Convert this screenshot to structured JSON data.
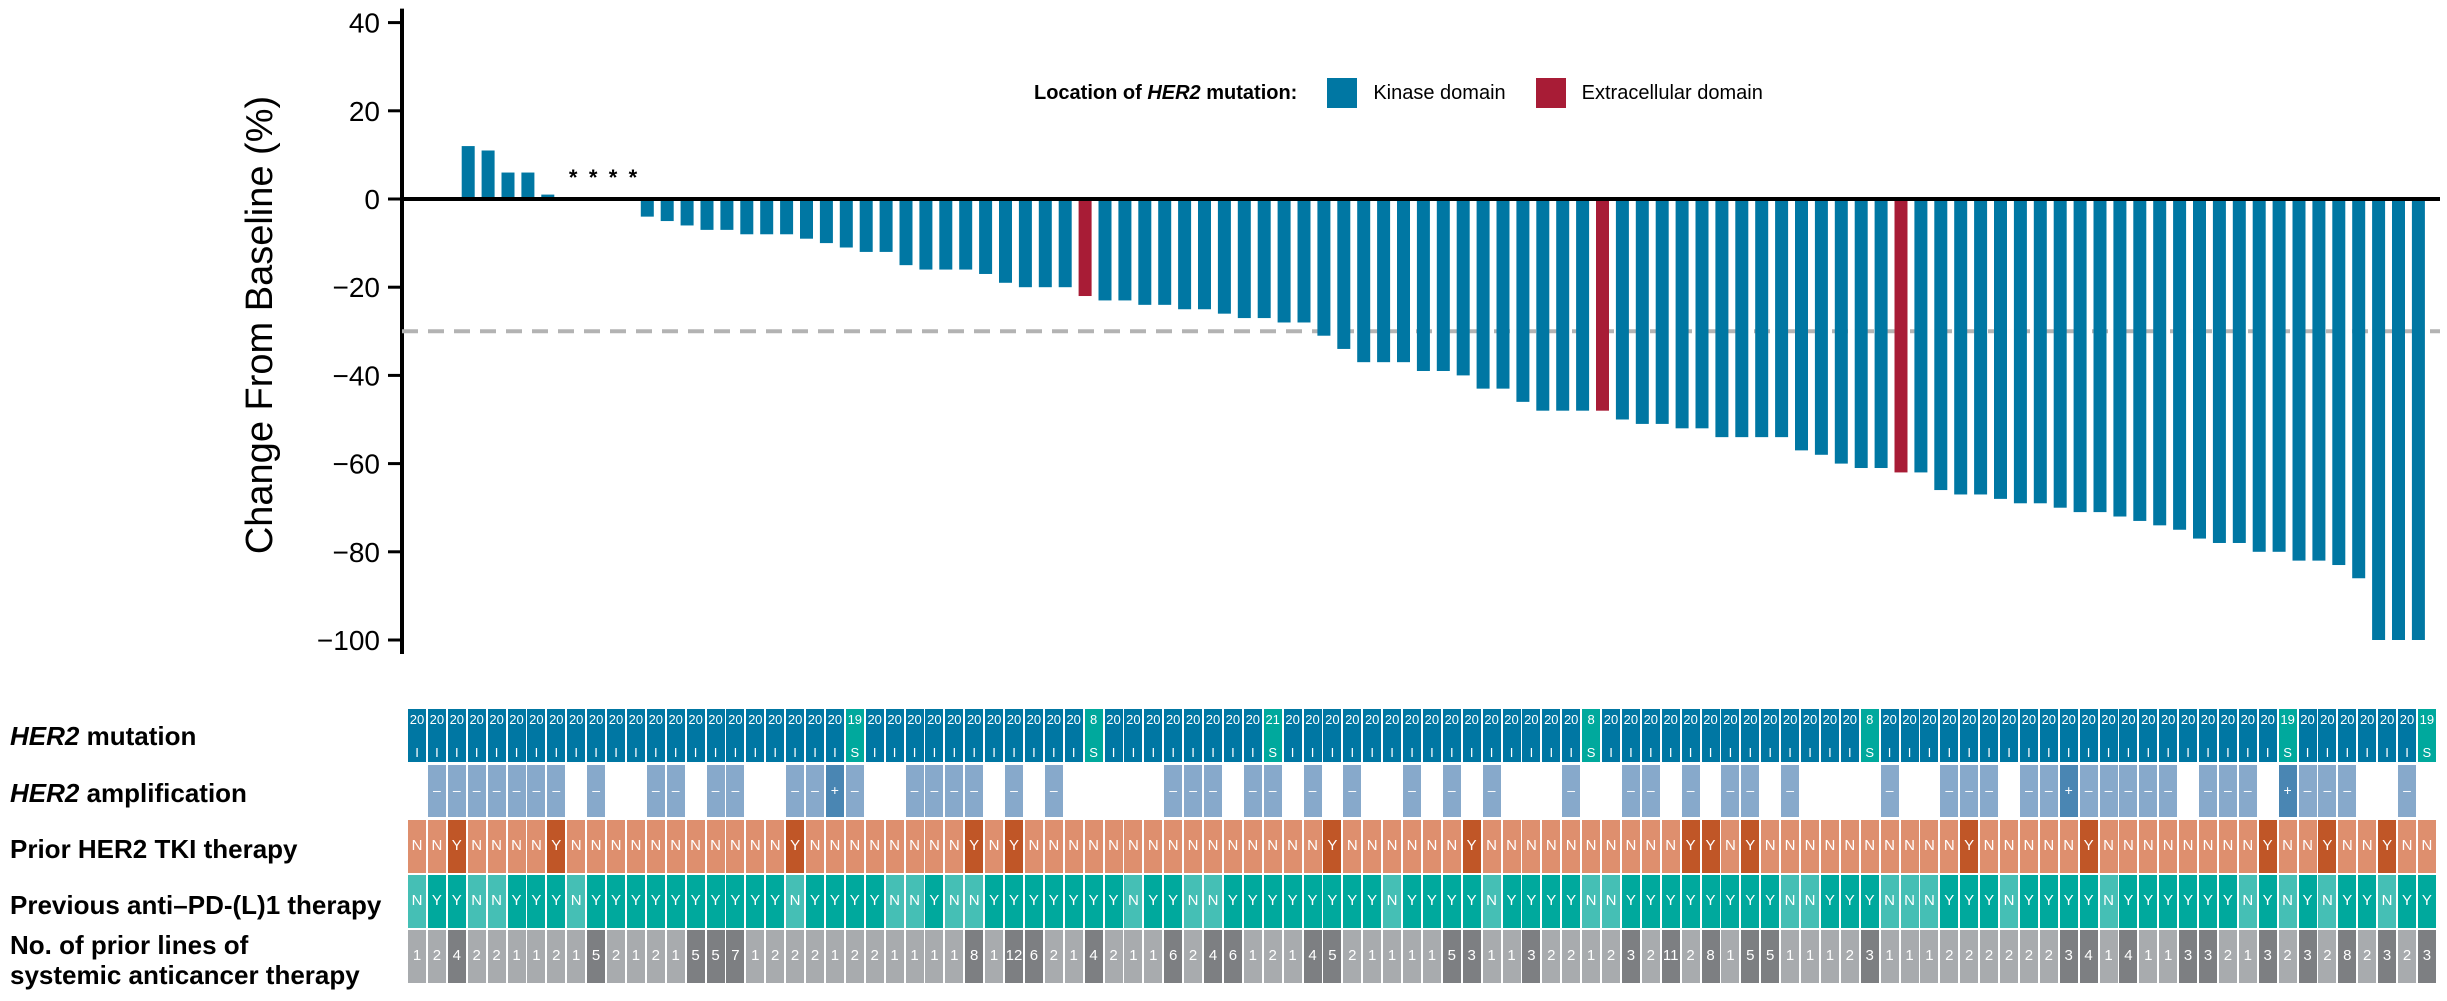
{
  "chart_data": {
    "type": "bar",
    "title": "",
    "ylabel": "Change From Baseline (%)",
    "xlabel": "",
    "ylim": [
      -100,
      40
    ],
    "yticks": [
      40,
      20,
      0,
      -20,
      -40,
      -60,
      -80,
      -100
    ],
    "ytick_labels": [
      "40",
      "20",
      "0",
      "−20",
      "−40",
      "−60",
      "−80",
      "−100"
    ],
    "reference_line": {
      "value": -30,
      "style": "dashed",
      "color": "#b3b3b3"
    },
    "legend": {
      "title_prefix": "Location of ",
      "title_italic": "HER2",
      "title_suffix": " mutation:",
      "placement": "top-center",
      "entries": [
        {
          "label": "Kinase domain",
          "color": "#0077a3"
        },
        {
          "label": "Extracellular domain",
          "color": "#a81c36"
        }
      ]
    },
    "asterisk_marker": "*",
    "n_columns": 102,
    "first_bar_column": 3,
    "values": [
      12,
      11,
      6,
      6,
      1,
      "*",
      "*",
      "*",
      "*",
      -4,
      -5,
      -6,
      -7,
      -7,
      -8,
      -8,
      -8,
      -9,
      -10,
      -11,
      -12,
      -12,
      -15,
      -16,
      -16,
      -16,
      -17,
      -19,
      -20,
      -20,
      -20,
      -22,
      -23,
      -23,
      -24,
      -24,
      -25,
      -25,
      -26,
      -27,
      -27,
      -28,
      -28,
      -31,
      -34,
      -37,
      -37,
      -37,
      -39,
      -39,
      -40,
      -43,
      -43,
      -46,
      -48,
      -48,
      -48,
      -48,
      -50,
      -51,
      -51,
      -52,
      -52,
      -54,
      -54,
      -54,
      -54,
      -57,
      -58,
      -60,
      -61,
      -61,
      -62,
      -62,
      -66,
      -67,
      -67,
      -68,
      -69,
      -69,
      -70,
      -71,
      -71,
      -72,
      -73,
      -74,
      -75,
      -77,
      -78,
      -78,
      -80,
      -80,
      -82,
      -82,
      -83,
      -86,
      -100,
      -100,
      -100
    ],
    "domain": [
      "K",
      "K",
      "K",
      "K",
      "K",
      "K",
      "K",
      "K",
      "K",
      "K",
      "K",
      "K",
      "K",
      "K",
      "K",
      "K",
      "K",
      "K",
      "K",
      "K",
      "K",
      "K",
      "K",
      "K",
      "K",
      "K",
      "K",
      "K",
      "K",
      "K",
      "K",
      "E",
      "K",
      "K",
      "K",
      "K",
      "K",
      "K",
      "K",
      "K",
      "K",
      "K",
      "K",
      "K",
      "K",
      "K",
      "K",
      "K",
      "K",
      "K",
      "K",
      "K",
      "K",
      "K",
      "K",
      "K",
      "K",
      "E",
      "K",
      "K",
      "K",
      "K",
      "K",
      "K",
      "K",
      "K",
      "K",
      "K",
      "K",
      "K",
      "K",
      "K",
      "E",
      "K",
      "K",
      "K",
      "K",
      "K",
      "K",
      "K",
      "K",
      "K",
      "K",
      "K",
      "K",
      "K",
      "K",
      "K",
      "K",
      "K",
      "K",
      "K",
      "K",
      "K",
      "K",
      "K",
      "K",
      "K",
      "K",
      "K",
      "K"
    ]
  },
  "tracks": {
    "labels": {
      "mutation": {
        "italic": "HER2",
        "rest": " mutation"
      },
      "amplification": {
        "italic": "HER2",
        "rest": " amplification"
      },
      "tki": "Prior HER2 TKI therapy",
      "pdl1": "Previous anti–PD-(L)1 therapy",
      "lines_1": "No. of prior lines of",
      "lines_2": "systemic anticancer therapy"
    },
    "colors": {
      "mutation_I": "#0077a3",
      "mutation_S": "#00a99d",
      "amp_neg": "#87a9cb",
      "amp_pos": "#4a86b3",
      "tki_N": "#de8f6e",
      "tki_Y": "#c05627",
      "pdl1_N": "#45bfb5",
      "pdl1_Y": "#00a99d",
      "lines_low": "#a8abae",
      "lines_high": "#7d7f82"
    },
    "mutation_exon": [
      "20",
      "20",
      "20",
      "20",
      "20",
      "20",
      "20",
      "20",
      "20",
      "20",
      "20",
      "20",
      "20",
      "20",
      "20",
      "20",
      "20",
      "20",
      "20",
      "20",
      "20",
      "20",
      "19",
      "20",
      "20",
      "20",
      "20",
      "20",
      "20",
      "20",
      "20",
      "20",
      "20",
      "20",
      "8",
      "20",
      "20",
      "20",
      "20",
      "20",
      "20",
      "20",
      "20",
      "21",
      "20",
      "20",
      "20",
      "20",
      "20",
      "20",
      "20",
      "20",
      "20",
      "20",
      "20",
      "20",
      "20",
      "20",
      "20",
      "8",
      "20",
      "20",
      "20",
      "20",
      "20",
      "20",
      "20",
      "20",
      "20",
      "20",
      "20",
      "20",
      "20",
      "8",
      "20",
      "20",
      "20",
      "20",
      "20",
      "20",
      "20",
      "20",
      "20",
      "20",
      "20",
      "20",
      "20",
      "20",
      "20",
      "20",
      "20",
      "20",
      "20",
      "20",
      "19",
      "20",
      "20",
      "20",
      "20",
      "20",
      "20",
      "19"
    ],
    "mutation_type": [
      "I",
      "I",
      "I",
      "I",
      "I",
      "I",
      "I",
      "I",
      "I",
      "I",
      "I",
      "I",
      "I",
      "I",
      "I",
      "I",
      "I",
      "I",
      "I",
      "I",
      "I",
      "I",
      "S",
      "I",
      "I",
      "I",
      "I",
      "I",
      "I",
      "I",
      "I",
      "I",
      "I",
      "I",
      "S",
      "I",
      "I",
      "I",
      "I",
      "I",
      "I",
      "I",
      "I",
      "S",
      "I",
      "I",
      "I",
      "I",
      "I",
      "I",
      "I",
      "I",
      "I",
      "I",
      "I",
      "I",
      "I",
      "I",
      "I",
      "S",
      "I",
      "I",
      "I",
      "I",
      "I",
      "I",
      "I",
      "I",
      "I",
      "I",
      "I",
      "I",
      "I",
      "S",
      "I",
      "I",
      "I",
      "I",
      "I",
      "I",
      "I",
      "I",
      "I",
      "I",
      "I",
      "I",
      "I",
      "I",
      "I",
      "I",
      "I",
      "I",
      "I",
      "I",
      "S",
      "I",
      "I",
      "I",
      "I",
      "I",
      "I",
      "S"
    ],
    "amplification": [
      "",
      "–",
      "–",
      "–",
      "–",
      "–",
      "–",
      "–",
      "",
      "–",
      "",
      "",
      "–",
      "–",
      "",
      "–",
      "–",
      "",
      "",
      "–",
      "–",
      "+",
      "–",
      "",
      "",
      "–",
      "–",
      "–",
      "–",
      "",
      "–",
      "",
      "–",
      "",
      "",
      "",
      "",
      "",
      "–",
      "–",
      "–",
      "",
      "–",
      "–",
      "",
      "–",
      "",
      "–",
      "",
      "",
      "–",
      "",
      "–",
      "",
      "–",
      "",
      "",
      "",
      "–",
      "",
      "",
      "–",
      "–",
      "",
      "–",
      "",
      "–",
      "–",
      "",
      "–",
      "",
      "",
      "",
      "",
      "–",
      "",
      "",
      "–",
      "–",
      "–",
      "",
      "–",
      "–",
      "+",
      "–",
      "–",
      "–",
      "–",
      "–",
      "",
      "–",
      "–",
      "–",
      "",
      "+",
      "–",
      "–",
      "–",
      "",
      "",
      "–",
      ""
    ],
    "tki": [
      "N",
      "N",
      "Y",
      "N",
      "N",
      "N",
      "N",
      "Y",
      "N",
      "N",
      "N",
      "N",
      "N",
      "N",
      "N",
      "N",
      "N",
      "N",
      "N",
      "Y",
      "N",
      "N",
      "N",
      "N",
      "N",
      "N",
      "N",
      "N",
      "Y",
      "N",
      "Y",
      "N",
      "N",
      "N",
      "N",
      "N",
      "N",
      "N",
      "N",
      "N",
      "N",
      "N",
      "N",
      "N",
      "N",
      "N",
      "Y",
      "N",
      "N",
      "N",
      "N",
      "N",
      "N",
      "Y",
      "N",
      "N",
      "N",
      "N",
      "N",
      "N",
      "N",
      "N",
      "N",
      "N",
      "Y",
      "Y",
      "N",
      "Y",
      "N",
      "N",
      "N",
      "N",
      "N",
      "N",
      "N",
      "N",
      "N",
      "N",
      "Y",
      "N",
      "N",
      "N",
      "N",
      "N",
      "Y",
      "N",
      "N",
      "N",
      "N",
      "N",
      "N",
      "N",
      "N",
      "Y",
      "N",
      "N",
      "Y",
      "N",
      "N",
      "Y",
      "N",
      "N"
    ],
    "pdl1": [
      "N",
      "Y",
      "Y",
      "N",
      "N",
      "Y",
      "Y",
      "Y",
      "N",
      "Y",
      "Y",
      "Y",
      "Y",
      "Y",
      "Y",
      "Y",
      "Y",
      "Y",
      "Y",
      "N",
      "Y",
      "Y",
      "Y",
      "Y",
      "N",
      "N",
      "Y",
      "N",
      "N",
      "Y",
      "Y",
      "Y",
      "Y",
      "Y",
      "Y",
      "Y",
      "N",
      "Y",
      "Y",
      "N",
      "N",
      "Y",
      "Y",
      "Y",
      "Y",
      "Y",
      "Y",
      "Y",
      "Y",
      "N",
      "Y",
      "Y",
      "Y",
      "Y",
      "N",
      "Y",
      "Y",
      "Y",
      "Y",
      "N",
      "N",
      "Y",
      "Y",
      "Y",
      "Y",
      "Y",
      "Y",
      "Y",
      "Y",
      "N",
      "N",
      "Y",
      "Y",
      "Y",
      "N",
      "N",
      "N",
      "Y",
      "Y",
      "Y",
      "N",
      "Y",
      "Y",
      "Y",
      "Y",
      "N",
      "Y",
      "Y",
      "Y",
      "Y",
      "Y",
      "Y",
      "N",
      "Y",
      "N",
      "Y",
      "N",
      "Y",
      "Y",
      "N",
      "Y",
      "Y"
    ],
    "prior_lines": [
      "1",
      "2",
      "4",
      "2",
      "2",
      "1",
      "1",
      "2",
      "1",
      "5",
      "2",
      "1",
      "2",
      "1",
      "5",
      "5",
      "7",
      "1",
      "2",
      "2",
      "2",
      "1",
      "2",
      "2",
      "1",
      "1",
      "1",
      "1",
      "8",
      "1",
      "12",
      "6",
      "2",
      "1",
      "4",
      "2",
      "1",
      "1",
      "6",
      "2",
      "4",
      "6",
      "1",
      "2",
      "1",
      "4",
      "5",
      "2",
      "1",
      "1",
      "1",
      "1",
      "5",
      "3",
      "1",
      "1",
      "3",
      "2",
      "2",
      "1",
      "2",
      "3",
      "2",
      "11",
      "2",
      "8",
      "1",
      "5",
      "5",
      "1",
      "1",
      "1",
      "2",
      "3",
      "1",
      "1",
      "1",
      "2",
      "2",
      "2",
      "2",
      "2",
      "2",
      "3",
      "4",
      "1",
      "4",
      "1",
      "1",
      "3",
      "3",
      "2",
      "1",
      "3",
      "2",
      "3",
      "2",
      "8",
      "2",
      "3",
      "2",
      "3"
    ]
  }
}
